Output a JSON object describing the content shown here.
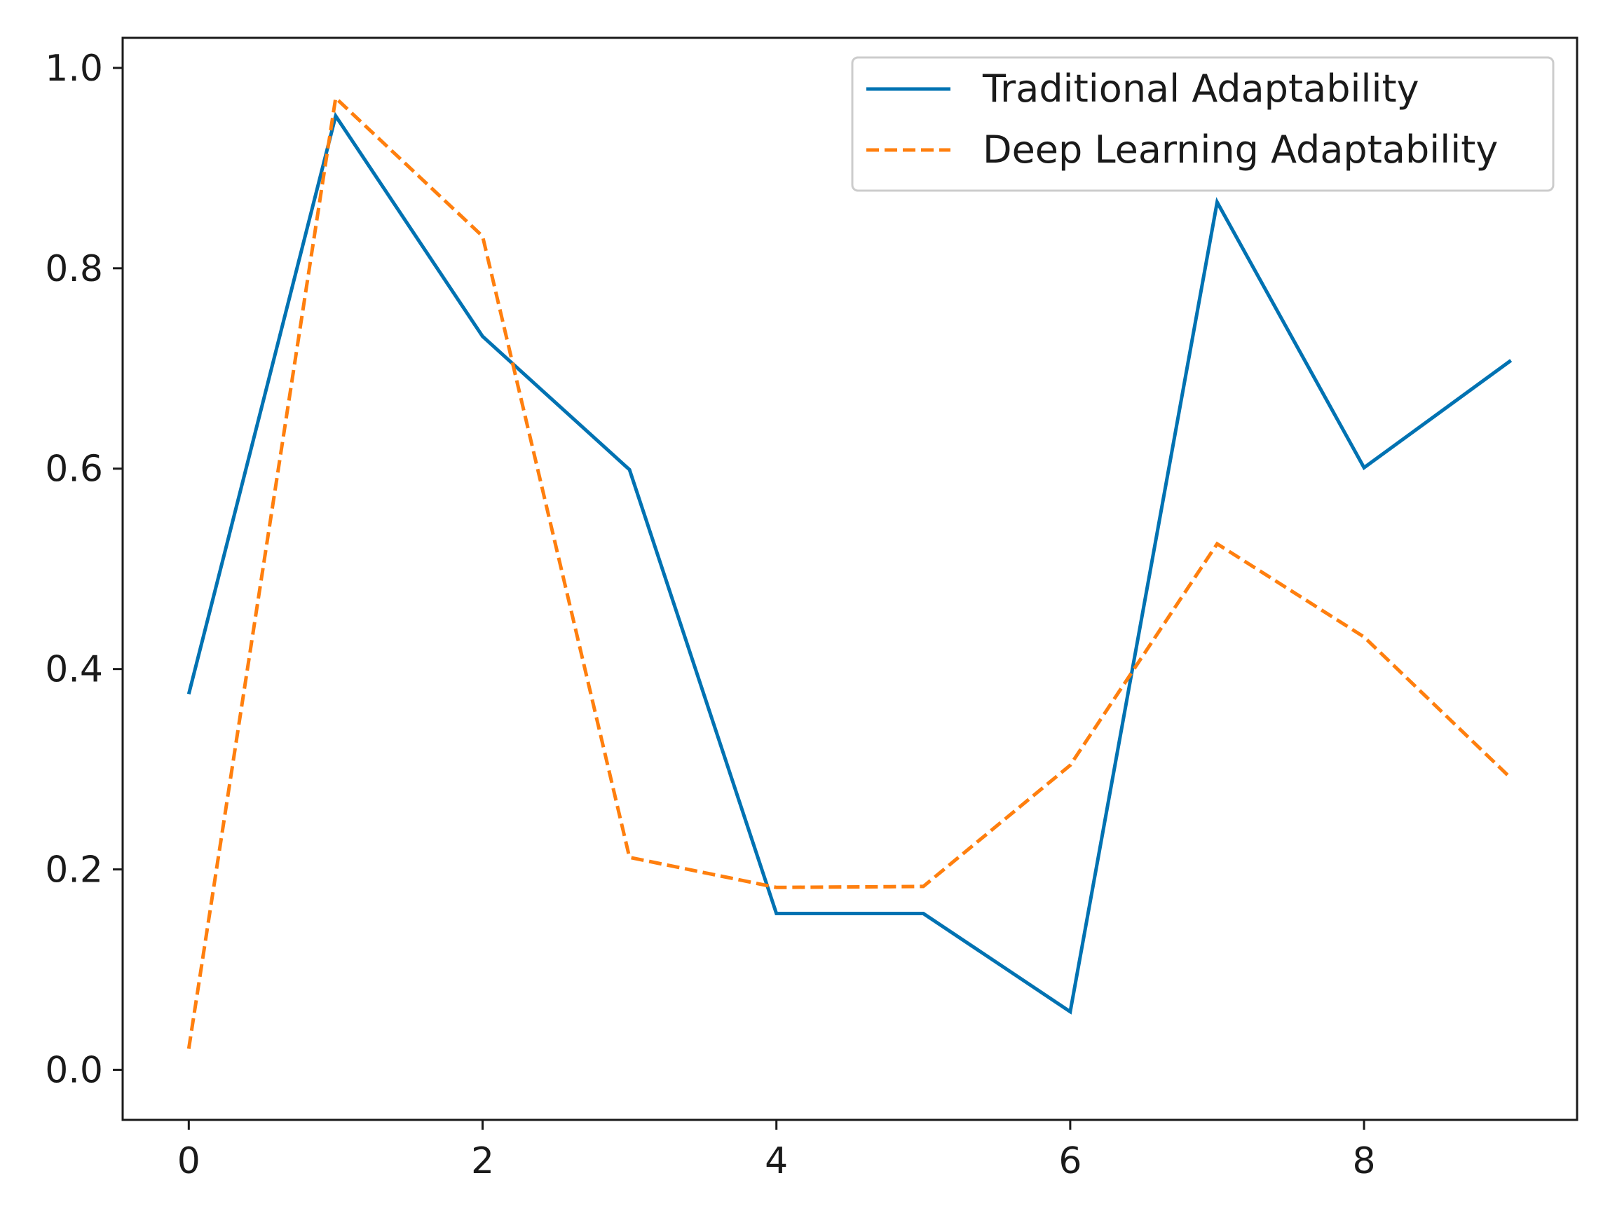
{
  "chart_data": {
    "type": "line",
    "title": "",
    "xlabel": "",
    "ylabel": "",
    "x": [
      0,
      1,
      2,
      3,
      4,
      5,
      6,
      7,
      8,
      9
    ],
    "xlim": [
      -0.45,
      9.45
    ],
    "ylim": [
      -0.05,
      1.03
    ],
    "xticks": [
      0,
      2,
      4,
      6,
      8
    ],
    "xtick_labels": [
      "0",
      "2",
      "4",
      "6",
      "8"
    ],
    "yticks": [
      0.0,
      0.2,
      0.4,
      0.6,
      0.8,
      1.0
    ],
    "ytick_labels": [
      "0.0",
      "0.2",
      "0.4",
      "0.6",
      "0.8",
      "1.0"
    ],
    "grid": false,
    "legend_position": "top-right",
    "series": [
      {
        "name": "Traditional Adaptability",
        "values": [
          0.375,
          0.952,
          0.732,
          0.599,
          0.156,
          0.156,
          0.058,
          0.866,
          0.601,
          0.708
        ],
        "color": "#0072B2",
        "style": "solid"
      },
      {
        "name": "Deep Learning Adaptability",
        "values": [
          0.021,
          0.97,
          0.832,
          0.212,
          0.182,
          0.183,
          0.304,
          0.525,
          0.432,
          0.291
        ],
        "color": "#FF7F0E",
        "style": "dashed"
      }
    ]
  }
}
